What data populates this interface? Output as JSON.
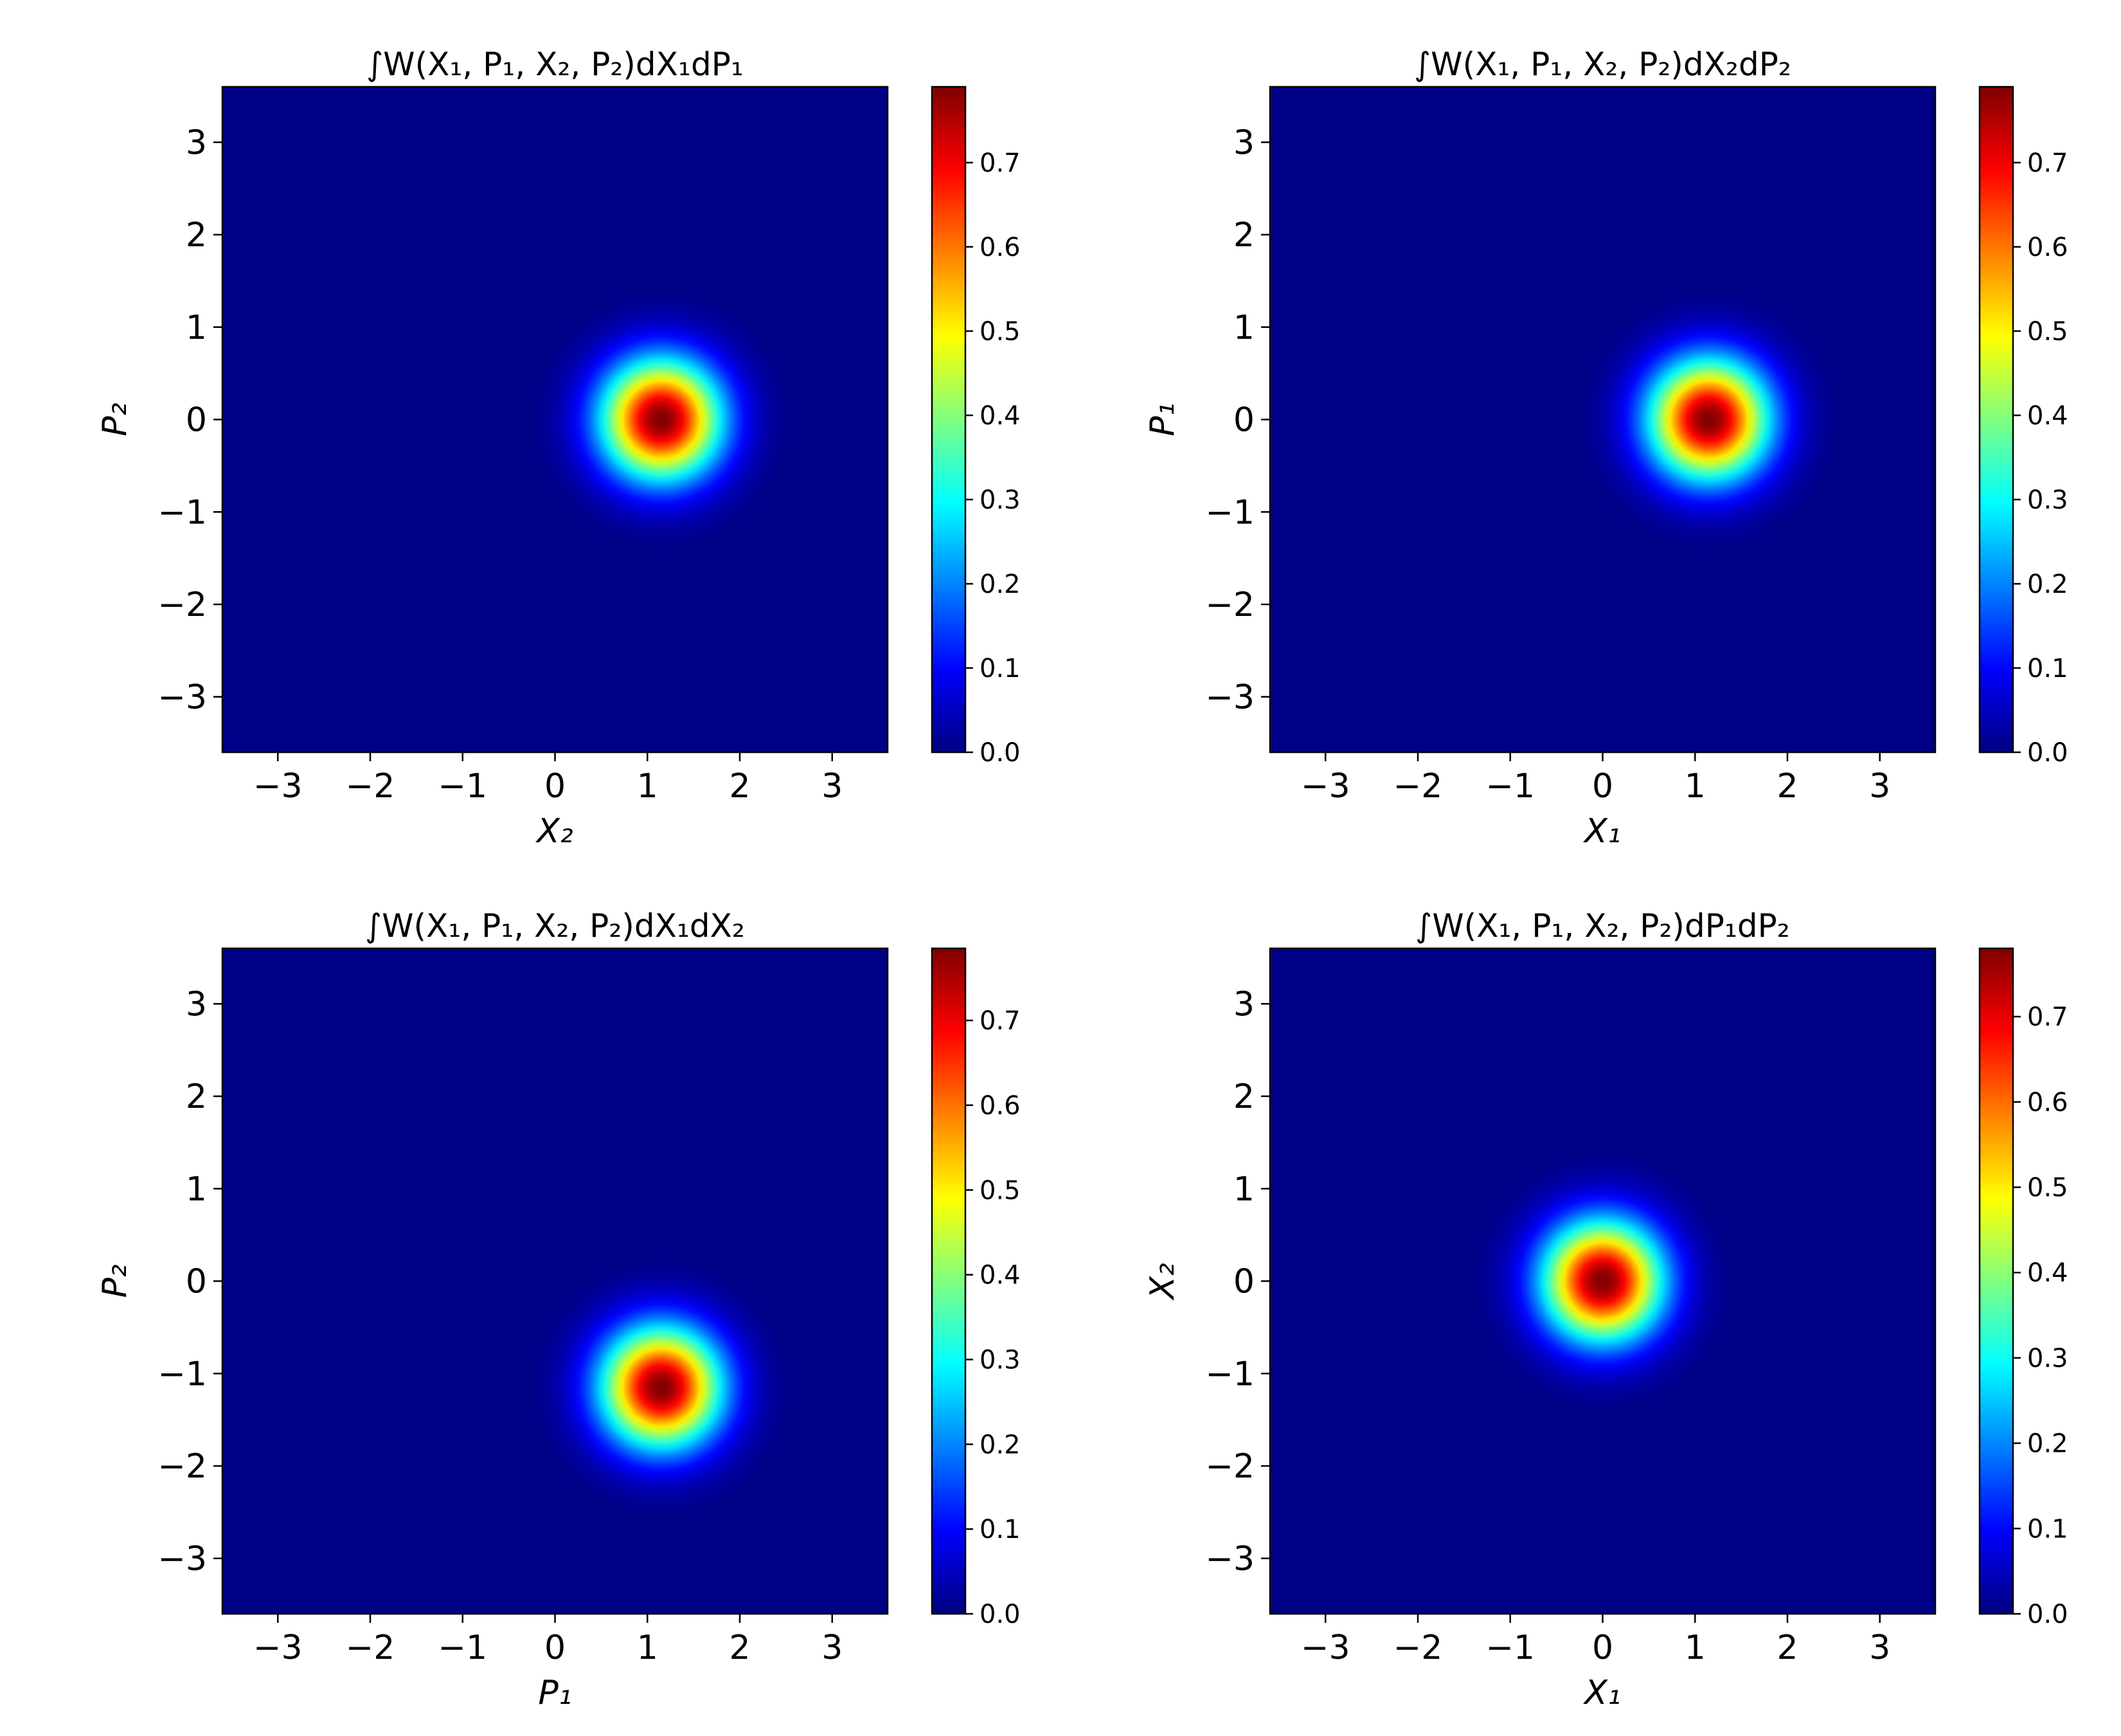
{
  "chart_data": [
    {
      "type": "heatmap",
      "title": "∫W(X₁, P₁, X₂, P₂)dX₁dP₁",
      "xlabel": "X₂",
      "ylabel": "P₂",
      "xlim": [
        -3.6,
        3.6
      ],
      "ylim": [
        -3.6,
        3.6
      ],
      "xticks": [
        -3,
        -2,
        -1,
        0,
        1,
        2,
        3
      ],
      "yticks": [
        -3,
        -2,
        -1,
        0,
        1,
        2,
        3
      ],
      "xtick_labels": [
        "−3",
        "−2",
        "−1",
        "0",
        "1",
        "2",
        "3"
      ],
      "ytick_labels": [
        "−3",
        "−2",
        "−1",
        "0",
        "1",
        "2",
        "3"
      ],
      "colormap": "jet",
      "gaussian_peak": {
        "x": 1.15,
        "y": 0.0,
        "sigma": 0.45,
        "amplitude": 0.79
      },
      "colorbar": {
        "vmin": 0.0,
        "vmax": 0.79,
        "ticks": [
          0.0,
          0.1,
          0.2,
          0.3,
          0.4,
          0.5,
          0.6,
          0.7
        ],
        "tick_labels": [
          "0.0",
          "0.1",
          "0.2",
          "0.3",
          "0.4",
          "0.5",
          "0.6",
          "0.7"
        ]
      }
    },
    {
      "type": "heatmap",
      "title": "∫W(X₁, P₁, X₂, P₂)dX₂dP₂",
      "xlabel": "X₁",
      "ylabel": "P₁",
      "xlim": [
        -3.6,
        3.6
      ],
      "ylim": [
        -3.6,
        3.6
      ],
      "xticks": [
        -3,
        -2,
        -1,
        0,
        1,
        2,
        3
      ],
      "yticks": [
        -3,
        -2,
        -1,
        0,
        1,
        2,
        3
      ],
      "xtick_labels": [
        "−3",
        "−2",
        "−1",
        "0",
        "1",
        "2",
        "3"
      ],
      "ytick_labels": [
        "−3",
        "−2",
        "−1",
        "0",
        "1",
        "2",
        "3"
      ],
      "colormap": "jet",
      "gaussian_peak": {
        "x": 1.15,
        "y": 0.0,
        "sigma": 0.45,
        "amplitude": 0.79
      },
      "colorbar": {
        "vmin": 0.0,
        "vmax": 0.79,
        "ticks": [
          0.0,
          0.1,
          0.2,
          0.3,
          0.4,
          0.5,
          0.6,
          0.7
        ],
        "tick_labels": [
          "0.0",
          "0.1",
          "0.2",
          "0.3",
          "0.4",
          "0.5",
          "0.6",
          "0.7"
        ]
      }
    },
    {
      "type": "heatmap",
      "title": "∫W(X₁, P₁, X₂, P₂)dX₁dX₂",
      "xlabel": "P₁",
      "ylabel": "P₂",
      "xlim": [
        -3.6,
        3.6
      ],
      "ylim": [
        -3.6,
        3.6
      ],
      "xticks": [
        -3,
        -2,
        -1,
        0,
        1,
        2,
        3
      ],
      "yticks": [
        -3,
        -2,
        -1,
        0,
        1,
        2,
        3
      ],
      "xtick_labels": [
        "−3",
        "−2",
        "−1",
        "0",
        "1",
        "2",
        "3"
      ],
      "ytick_labels": [
        "−3",
        "−2",
        "−1",
        "0",
        "1",
        "2",
        "3"
      ],
      "colormap": "jet",
      "gaussian_peak": {
        "x": 1.15,
        "y": -1.15,
        "sigma": 0.45,
        "amplitude": 0.785
      },
      "colorbar": {
        "vmin": 0.0,
        "vmax": 0.785,
        "ticks": [
          0.0,
          0.1,
          0.2,
          0.3,
          0.4,
          0.5,
          0.6,
          0.7
        ],
        "tick_labels": [
          "0.0",
          "0.1",
          "0.2",
          "0.3",
          "0.4",
          "0.5",
          "0.6",
          "0.7"
        ]
      }
    },
    {
      "type": "heatmap",
      "title": "∫W(X₁, P₁, X₂, P₂)dP₁dP₂",
      "xlabel": "X₁",
      "ylabel": "X₂",
      "xlim": [
        -3.6,
        3.6
      ],
      "ylim": [
        -3.6,
        3.6
      ],
      "xticks": [
        -3,
        -2,
        -1,
        0,
        1,
        2,
        3
      ],
      "yticks": [
        -3,
        -2,
        -1,
        0,
        1,
        2,
        3
      ],
      "xtick_labels": [
        "−3",
        "−2",
        "−1",
        "0",
        "1",
        "2",
        "3"
      ],
      "ytick_labels": [
        "−3",
        "−2",
        "−1",
        "0",
        "1",
        "2",
        "3"
      ],
      "colormap": "jet",
      "gaussian_peak": {
        "x": 0.0,
        "y": 0.0,
        "sigma": 0.45,
        "amplitude": 0.78
      },
      "colorbar": {
        "vmin": 0.0,
        "vmax": 0.78,
        "ticks": [
          0.0,
          0.1,
          0.2,
          0.3,
          0.4,
          0.5,
          0.6,
          0.7
        ],
        "tick_labels": [
          "0.0",
          "0.1",
          "0.2",
          "0.3",
          "0.4",
          "0.5",
          "0.6",
          "0.7"
        ]
      }
    }
  ]
}
